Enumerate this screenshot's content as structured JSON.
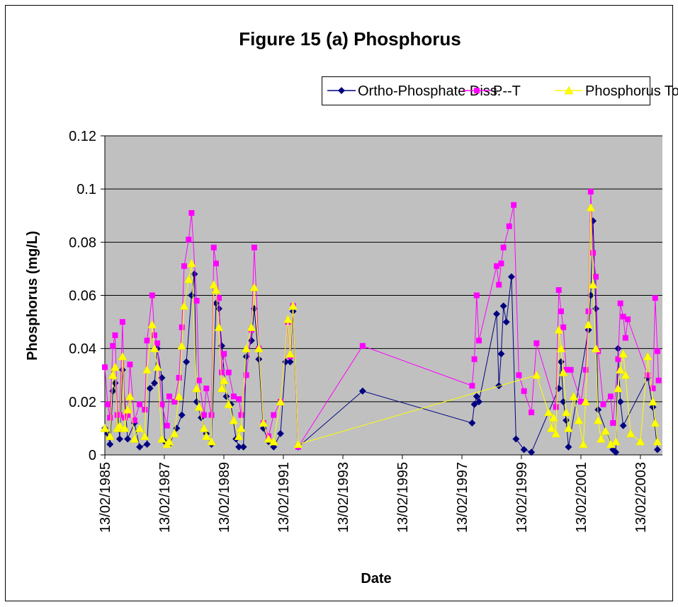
{
  "chart_data": {
    "type": "line",
    "title": "Figure 15 (a) Phosphorus",
    "x_label": "Date",
    "y_label": "Phosphorus (mg/L)",
    "xlim": [
      "1985-02-13",
      "2003-11-10"
    ],
    "xticks": [
      {
        "value": "1985-02-13",
        "label": "13/02/1985"
      },
      {
        "value": "1987-02-13",
        "label": "13/02/1987"
      },
      {
        "value": "1989-02-13",
        "label": "13/02/1989"
      },
      {
        "value": "1991-02-13",
        "label": "13/02/1991"
      },
      {
        "value": "1993-02-13",
        "label": "13/02/1993"
      },
      {
        "value": "1995-02-13",
        "label": "13/02/1995"
      },
      {
        "value": "1997-02-13",
        "label": "13/02/1997"
      },
      {
        "value": "1999-02-13",
        "label": "13/02/1999"
      },
      {
        "value": "2001-02-13",
        "label": "13/02/2001"
      },
      {
        "value": "2003-02-13",
        "label": "13/02/2003"
      }
    ],
    "ylim": [
      0,
      0.12
    ],
    "yticks": [
      0,
      0.02,
      0.04,
      0.06,
      0.08,
      0.1,
      0.12
    ],
    "grid": true,
    "legend": "top",
    "series": [
      {
        "name": "Ortho-Phosphate Diss.",
        "color": "#000080",
        "marker": "diamond",
        "x": [
          "1985-02-13",
          "1985-03-20",
          "1985-04-17",
          "1985-05-22",
          "1985-06-19",
          "1985-08-14",
          "1985-09-18",
          "1985-11-20",
          "1986-02-12",
          "1986-04-16",
          "1986-07-16",
          "1986-08-20",
          "1986-10-15",
          "1986-11-19",
          "1987-01-14",
          "1987-02-18",
          "1987-04-15",
          "1987-07-15",
          "1987-09-16",
          "1987-11-11",
          "1988-01-13",
          "1988-02-17",
          "1988-03-16",
          "1988-05-11",
          "1988-07-13",
          "1988-09-14",
          "1988-11-09",
          "1988-12-14",
          "1989-01-18",
          "1989-03-15",
          "1989-05-10",
          "1989-07-12",
          "1989-08-16",
          "1989-10-11",
          "1989-11-15",
          "1990-01-17",
          "1990-02-21",
          "1990-04-18",
          "1990-06-13",
          "1990-08-15",
          "1990-10-17",
          "1991-01-09",
          "1991-03-13",
          "1991-05-08",
          "1991-06-12",
          "1991-08-14",
          "1993-10-13",
          "1997-06-18",
          "1997-07-16",
          "1997-08-13",
          "1997-09-10",
          "1998-04-15",
          "1998-05-13",
          "1998-06-10",
          "1998-07-08",
          "1998-08-12",
          "1998-10-14",
          "1998-12-09",
          "1999-03-17",
          "1999-06-16",
          "2000-05-17",
          "2000-06-14",
          "2000-07-12",
          "2000-08-16",
          "2000-09-13",
          "2001-05-16",
          "2001-06-13",
          "2001-07-11",
          "2001-08-15",
          "2001-09-12",
          "2002-03-13",
          "2002-04-17",
          "2002-05-15",
          "2002-06-12",
          "2002-07-17",
          "2003-05-14",
          "2003-07-16",
          "2003-09-10"
        ],
        "values": [
          0.01,
          0.008,
          0.004,
          0.024,
          0.027,
          0.006,
          0.032,
          0.006,
          0.012,
          0.003,
          0.004,
          0.025,
          0.027,
          0.04,
          0.029,
          0.005,
          0.004,
          0.01,
          0.015,
          0.035,
          0.06,
          0.068,
          0.02,
          0.014,
          0.008,
          0.004,
          0.057,
          0.055,
          0.041,
          0.022,
          0.019,
          0.006,
          0.003,
          0.003,
          0.037,
          0.043,
          0.055,
          0.036,
          0.01,
          0.005,
          0.003,
          0.008,
          0.035,
          0.035,
          0.054,
          0.003,
          0.024,
          0.012,
          0.019,
          0.022,
          0.02,
          0.053,
          0.026,
          0.038,
          0.056,
          0.05,
          0.067,
          0.006,
          0.002,
          0.001,
          0.025,
          0.035,
          0.02,
          0.013,
          0.003,
          0.047,
          0.06,
          0.088,
          0.055,
          0.017,
          0.002,
          0.001,
          0.04,
          0.02,
          0.011,
          0.029,
          0.018,
          0.002
        ]
      },
      {
        "name": "P--T",
        "color": "#ff00ff",
        "marker": "square",
        "x": [
          "1985-02-13",
          "1985-03-20",
          "1985-04-17",
          "1985-05-22",
          "1985-06-19",
          "1985-07-17",
          "1985-08-14",
          "1985-09-18",
          "1985-10-16",
          "1985-11-20",
          "1985-12-18",
          "1986-02-12",
          "1986-04-16",
          "1986-06-18",
          "1986-07-16",
          "1986-09-17",
          "1986-10-15",
          "1986-11-19",
          "1987-01-14",
          "1987-03-18",
          "1987-04-15",
          "1987-06-17",
          "1987-08-12",
          "1987-09-16",
          "1987-10-14",
          "1987-12-09",
          "1988-01-13",
          "1988-03-16",
          "1988-04-13",
          "1988-06-15",
          "1988-07-13",
          "1988-09-14",
          "1988-10-12",
          "1988-11-09",
          "1988-12-14",
          "1989-01-18",
          "1989-02-15",
          "1989-04-12",
          "1989-06-14",
          "1989-08-16",
          "1989-09-13",
          "1989-11-15",
          "1990-01-17",
          "1990-02-21",
          "1990-04-18",
          "1990-06-13",
          "1990-08-15",
          "1990-10-17",
          "1991-01-09",
          "1991-04-10",
          "1991-05-08",
          "1991-06-12",
          "1991-08-14",
          "1993-10-13",
          "1997-06-18",
          "1997-07-16",
          "1997-08-13",
          "1997-09-10",
          "1998-04-15",
          "1998-05-13",
          "1998-06-10",
          "1998-07-08",
          "1998-09-16",
          "1998-11-11",
          "1999-01-13",
          "1999-03-17",
          "1999-06-16",
          "1999-08-18",
          "2000-04-12",
          "2000-05-17",
          "2000-06-14",
          "2000-07-12",
          "2000-08-16",
          "2000-10-11",
          "2001-02-14",
          "2001-04-11",
          "2001-05-16",
          "2001-06-13",
          "2001-07-11",
          "2001-08-15",
          "2001-09-12",
          "2001-11-14",
          "2002-02-13",
          "2002-03-13",
          "2002-05-15",
          "2002-06-12",
          "2002-07-17",
          "2002-08-14",
          "2002-09-11",
          "2003-05-14",
          "2003-07-16",
          "2003-08-13",
          "2003-09-10",
          "2003-09-24"
        ],
        "values": [
          0.033,
          0.019,
          0.014,
          0.041,
          0.045,
          0.015,
          0.015,
          0.05,
          0.014,
          0.015,
          0.034,
          0.013,
          0.019,
          0.017,
          0.043,
          0.06,
          0.045,
          0.042,
          0.019,
          0.011,
          0.022,
          0.02,
          0.029,
          0.048,
          0.071,
          0.081,
          0.091,
          0.058,
          0.028,
          0.015,
          0.025,
          0.015,
          0.078,
          0.072,
          0.059,
          0.031,
          0.038,
          0.031,
          0.022,
          0.021,
          0.015,
          0.03,
          0.047,
          0.078,
          0.04,
          0.012,
          0.007,
          0.015,
          0.02,
          0.05,
          0.037,
          0.056,
          0.003,
          0.041,
          0.026,
          0.036,
          0.06,
          0.043,
          0.071,
          0.064,
          0.072,
          0.078,
          0.086,
          0.094,
          0.03,
          0.024,
          0.016,
          0.042,
          0.018,
          0.062,
          0.054,
          0.048,
          0.032,
          0.032,
          0.02,
          0.032,
          0.054,
          0.099,
          0.076,
          0.067,
          0.039,
          0.019,
          0.022,
          0.012,
          0.036,
          0.057,
          0.052,
          0.044,
          0.051,
          0.03,
          0.025,
          0.059,
          0.039,
          0.028
        ]
      },
      {
        "name": "Phosphorus Tot. Diss.",
        "color": "#ffff00",
        "marker": "triangle",
        "x": [
          "1985-02-13",
          "1985-04-17",
          "1985-05-22",
          "1985-06-19",
          "1985-07-17",
          "1985-08-14",
          "1985-09-18",
          "1985-10-16",
          "1985-11-20",
          "1985-12-18",
          "1986-02-12",
          "1986-04-16",
          "1986-06-18",
          "1986-07-16",
          "1986-09-17",
          "1986-10-15",
          "1986-11-19",
          "1987-01-14",
          "1987-03-18",
          "1987-04-15",
          "1987-06-17",
          "1987-08-12",
          "1987-09-16",
          "1987-10-14",
          "1987-12-09",
          "1988-01-13",
          "1988-03-16",
          "1988-04-13",
          "1988-06-15",
          "1988-07-13",
          "1988-09-14",
          "1988-10-12",
          "1988-11-09",
          "1988-12-14",
          "1989-01-18",
          "1989-02-15",
          "1989-04-12",
          "1989-06-14",
          "1989-08-16",
          "1989-09-13",
          "1989-11-15",
          "1990-01-17",
          "1990-02-21",
          "1990-04-18",
          "1990-06-13",
          "1990-08-15",
          "1990-10-17",
          "1991-01-09",
          "1991-04-10",
          "1991-05-08",
          "1991-06-12",
          "1991-08-14",
          "1999-08-18",
          "2000-01-12",
          "2000-02-16",
          "2000-03-15",
          "2000-04-12",
          "2000-05-17",
          "2000-06-14",
          "2000-07-12",
          "2000-08-16",
          "2000-09-13",
          "2000-11-15",
          "2001-01-17",
          "2001-03-14",
          "2001-04-11",
          "2001-05-16",
          "2001-06-13",
          "2001-07-11",
          "2001-08-15",
          "2001-09-12",
          "2001-10-17",
          "2001-12-12",
          "2002-02-13",
          "2002-04-17",
          "2002-05-15",
          "2002-06-12",
          "2002-07-17",
          "2002-08-14",
          "2002-10-16",
          "2003-02-12",
          "2003-05-14",
          "2003-07-16",
          "2003-08-13",
          "2003-09-10"
        ],
        "values": [
          0.01,
          0.007,
          0.03,
          0.033,
          0.01,
          0.011,
          0.037,
          0.01,
          0.017,
          0.022,
          0.006,
          0.01,
          0.007,
          0.032,
          0.049,
          0.04,
          0.033,
          0.006,
          0.004,
          0.005,
          0.008,
          0.022,
          0.041,
          0.056,
          0.066,
          0.072,
          0.025,
          0.018,
          0.01,
          0.007,
          0.005,
          0.064,
          0.062,
          0.048,
          0.025,
          0.028,
          0.019,
          0.013,
          0.007,
          0.01,
          0.04,
          0.048,
          0.063,
          0.04,
          0.012,
          0.006,
          0.005,
          0.02,
          0.051,
          0.038,
          0.056,
          0.004,
          0.03,
          0.016,
          0.01,
          0.014,
          0.008,
          0.047,
          0.04,
          0.031,
          0.016,
          0.01,
          0.022,
          0.013,
          0.004,
          0.02,
          0.049,
          0.093,
          0.064,
          0.04,
          0.013,
          0.006,
          0.009,
          0.004,
          0.005,
          0.025,
          0.032,
          0.038,
          0.03,
          0.008,
          0.005,
          0.037,
          0.02,
          0.012,
          0.005
        ]
      }
    ]
  }
}
